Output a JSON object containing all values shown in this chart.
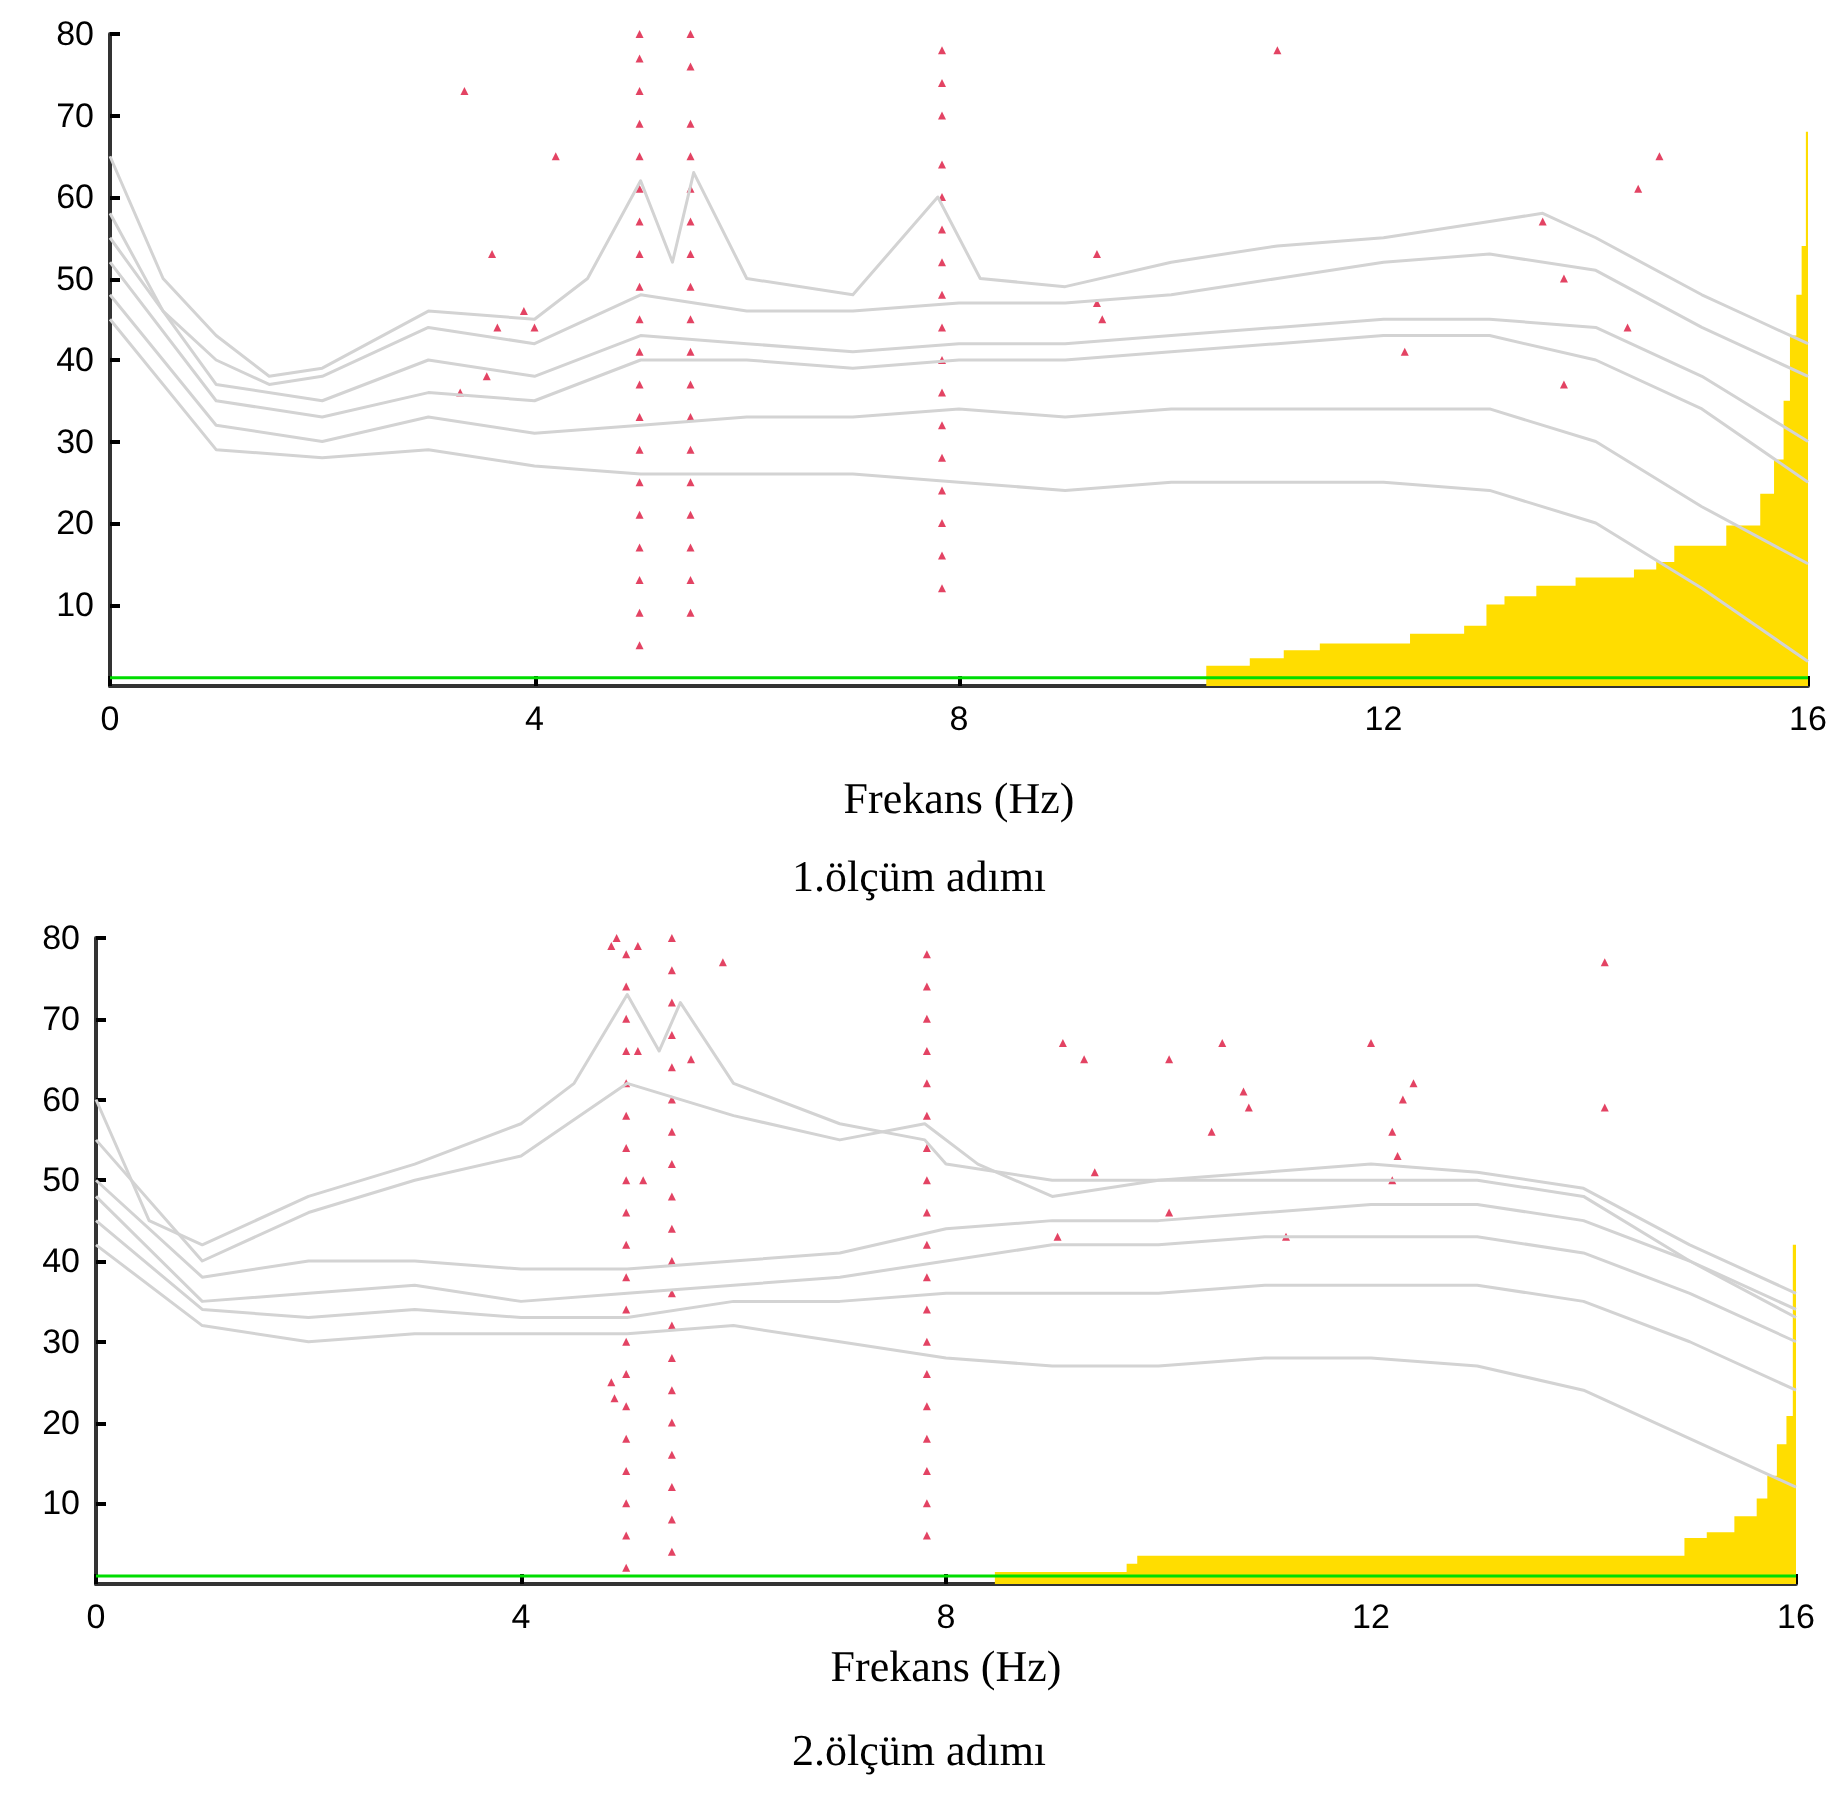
{
  "chart_data": [
    {
      "type": "line",
      "xlabel": "Frekans (Hz)",
      "title": "1.ölçüm adımı",
      "xlim": [
        0,
        16
      ],
      "xticks": [
        0,
        4,
        8,
        12,
        16
      ],
      "ylim": [
        0,
        80
      ],
      "yticks": [
        10,
        20,
        30,
        40,
        50,
        60,
        70,
        80
      ],
      "grid": false,
      "marker": "none",
      "line_style": "solid",
      "series": [
        {
          "type": "area",
          "color": "#ffdd00",
          "x": [
            10.33,
            10.33,
            10.74,
            10.74,
            11.06,
            11.06,
            11.4,
            11.4,
            12.25,
            12.25,
            12.76,
            12.76,
            12.97,
            12.97,
            13.14,
            13.14,
            13.44,
            13.44,
            13.81,
            13.81,
            14.36,
            14.36,
            14.57,
            14.57,
            14.74,
            14.74,
            15.23,
            15.23,
            15.55,
            15.55,
            15.68,
            15.68,
            15.77,
            15.77,
            15.83,
            15.83,
            15.89,
            15.89,
            15.94,
            15.94,
            15.98,
            15.98,
            16
          ],
          "values": [
            0,
            2.5,
            2.5,
            3.4,
            3.4,
            4.4,
            4.4,
            5.2,
            5.2,
            6.4,
            6.4,
            7.4,
            7.4,
            10,
            10,
            11,
            11,
            12.3,
            12.3,
            13.3,
            13.3,
            14.3,
            14.3,
            15.2,
            15.2,
            17.2,
            17.2,
            19.7,
            19.7,
            23.6,
            23.6,
            27.8,
            27.8,
            35,
            35,
            43,
            43,
            48,
            48,
            54,
            54,
            68,
            68
          ]
        },
        {
          "type": "line",
          "color": "#d3d3d3",
          "x": [
            0,
            0.5,
            1,
            1.5,
            2,
            3,
            4,
            4.5,
            5,
            5.3,
            5.5,
            6,
            7,
            7.8,
            8.2,
            9,
            10,
            11,
            12,
            13,
            13.5,
            14,
            15,
            15.5,
            16
          ],
          "values": [
            65,
            50,
            43,
            38,
            39,
            46,
            45,
            50,
            62,
            52,
            63,
            50,
            48,
            60,
            50,
            49,
            52,
            54,
            55,
            57,
            58,
            55,
            48,
            45,
            42
          ]
        },
        {
          "type": "line",
          "color": "#d3d3d3",
          "x": [
            0,
            0.5,
            1,
            1.5,
            2,
            3,
            4,
            5,
            6,
            7,
            8,
            9,
            10,
            11,
            12,
            13,
            14,
            15,
            16
          ],
          "values": [
            58,
            46,
            40,
            37,
            38,
            44,
            42,
            48,
            46,
            46,
            47,
            47,
            48,
            50,
            52,
            53,
            51,
            44,
            38
          ]
        },
        {
          "type": "line",
          "color": "#d3d3d3",
          "x": [
            0,
            1,
            2,
            3,
            4,
            5,
            6,
            7,
            8,
            9,
            10,
            11,
            12,
            13,
            14,
            15,
            16
          ],
          "values": [
            55,
            37,
            35,
            40,
            38,
            43,
            42,
            41,
            42,
            42,
            43,
            44,
            45,
            45,
            44,
            38,
            30
          ]
        },
        {
          "type": "line",
          "color": "#d3d3d3",
          "x": [
            0,
            1,
            2,
            3,
            4,
            5,
            6,
            7,
            8,
            9,
            10,
            11,
            12,
            13,
            14,
            15,
            16
          ],
          "values": [
            52,
            35,
            33,
            36,
            35,
            40,
            40,
            39,
            40,
            40,
            41,
            42,
            43,
            43,
            40,
            34,
            25
          ]
        },
        {
          "type": "line",
          "color": "#d3d3d3",
          "x": [
            0,
            1,
            2,
            3,
            4,
            5,
            6,
            7,
            8,
            9,
            10,
            11,
            12,
            13,
            14,
            15,
            16
          ],
          "values": [
            48,
            32,
            30,
            33,
            31,
            32,
            33,
            33,
            34,
            33,
            34,
            34,
            34,
            34,
            30,
            22,
            15
          ]
        },
        {
          "type": "line",
          "color": "#d3d3d3",
          "x": [
            0,
            1,
            2,
            3,
            4,
            5,
            6,
            7,
            8,
            9,
            10,
            11,
            12,
            13,
            14,
            15,
            16
          ],
          "values": [
            45,
            29,
            28,
            29,
            27,
            26,
            26,
            26,
            25,
            24,
            25,
            25,
            25,
            24,
            20,
            12,
            3
          ]
        },
        {
          "type": "line",
          "color": "#00dd00",
          "x": [
            0,
            16
          ],
          "values": [
            1,
            1
          ]
        },
        {
          "type": "scatter",
          "color": "#dc143c",
          "marker": "triangle",
          "x": [
            4.99,
            4.99,
            4.99,
            4.99,
            4.99,
            4.99,
            4.99,
            4.99,
            4.99,
            4.99,
            4.99,
            4.99,
            4.99,
            4.99,
            4.99,
            4.99,
            4.99,
            4.99,
            4.99,
            4.99,
            5.47,
            5.47,
            5.47,
            5.47,
            5.47,
            5.47,
            5.47,
            5.47,
            5.47,
            5.47,
            5.47,
            5.47,
            5.47,
            5.47,
            5.47,
            5.47,
            5.47,
            5.47,
            7.84,
            7.84,
            7.84,
            7.84,
            7.84,
            7.84,
            7.84,
            7.84,
            7.84,
            7.84,
            7.84,
            7.84,
            7.84,
            7.84,
            7.84,
            7.84,
            7.84,
            3.34,
            3.6,
            3.55,
            3.65,
            3.9,
            4.0,
            4.2,
            3.3,
            11,
            9.3,
            9.3,
            9.35,
            12.2,
            13.5,
            13.7,
            13.7,
            14.4,
            14.6,
            14.3
          ],
          "values": [
            5,
            9,
            13,
            17,
            21,
            25,
            29,
            33,
            37,
            41,
            45,
            49,
            53,
            57,
            61,
            65,
            69,
            73,
            77,
            80,
            9,
            13,
            17,
            21,
            25,
            29,
            33,
            37,
            41,
            45,
            49,
            53,
            57,
            61,
            65,
            69,
            76,
            80,
            12,
            16,
            20,
            24,
            28,
            32,
            36,
            40,
            44,
            48,
            52,
            56,
            60,
            64,
            70,
            74,
            78,
            73,
            53,
            38,
            44,
            46,
            44,
            65,
            36,
            78,
            53,
            47,
            45,
            41,
            57,
            50,
            37,
            61,
            65,
            44
          ]
        }
      ]
    },
    {
      "type": "line",
      "xlabel": "Frekans (Hz)",
      "title": "2.ölçüm adımı",
      "xlim": [
        0,
        16
      ],
      "xticks": [
        0,
        4,
        8,
        12,
        16
      ],
      "ylim": [
        0,
        80
      ],
      "yticks": [
        10,
        20,
        30,
        40,
        50,
        60,
        70,
        80
      ],
      "grid": false,
      "marker": "none",
      "line_style": "solid",
      "series": [
        {
          "type": "area",
          "color": "#ffdd00",
          "x": [
            8.46,
            8.46,
            9.7,
            9.7,
            9.8,
            9.8,
            14.95,
            14.95,
            15.16,
            15.16,
            15.42,
            15.42,
            15.63,
            15.63,
            15.73,
            15.73,
            15.82,
            15.82,
            15.91,
            15.91,
            15.97,
            15.97,
            16
          ],
          "values": [
            0,
            1.5,
            1.5,
            2.5,
            2.5,
            3.5,
            3.5,
            5.7,
            5.7,
            6.4,
            6.4,
            8.4,
            8.4,
            10.6,
            10.6,
            13.4,
            13.4,
            17.3,
            17.3,
            20.8,
            20.8,
            42,
            42
          ]
        },
        {
          "type": "line",
          "color": "#d3d3d3",
          "x": [
            0,
            0.5,
            1,
            2,
            3,
            4,
            4.5,
            5,
            5.3,
            5.5,
            6,
            7,
            7.8,
            8,
            9,
            10,
            11,
            12,
            13,
            14,
            15,
            16
          ],
          "values": [
            60,
            45,
            42,
            48,
            52,
            57,
            62,
            73,
            66,
            72,
            62,
            57,
            55,
            52,
            50,
            50,
            51,
            52,
            51,
            49,
            42,
            36
          ]
        },
        {
          "type": "line",
          "color": "#d3d3d3",
          "x": [
            0,
            1,
            2,
            3,
            4,
            5,
            6,
            7,
            7.8,
            8.3,
            9,
            10,
            11,
            12,
            13,
            14,
            15,
            16
          ],
          "values": [
            55,
            40,
            46,
            50,
            53,
            62,
            58,
            55,
            57,
            52,
            48,
            50,
            50,
            50,
            50,
            48,
            40,
            34
          ]
        },
        {
          "type": "line",
          "color": "#d3d3d3",
          "x": [
            0,
            1,
            2,
            3,
            4,
            5,
            6,
            7,
            8,
            9,
            10,
            11,
            12,
            13,
            14,
            15,
            16
          ],
          "values": [
            50,
            38,
            40,
            40,
            39,
            39,
            40,
            41,
            44,
            45,
            45,
            46,
            47,
            47,
            45,
            40,
            33
          ]
        },
        {
          "type": "line",
          "color": "#d3d3d3",
          "x": [
            0,
            1,
            2,
            3,
            4,
            5,
            6,
            7,
            8,
            9,
            10,
            11,
            12,
            13,
            14,
            15,
            16
          ],
          "values": [
            48,
            35,
            36,
            37,
            35,
            36,
            37,
            38,
            40,
            42,
            42,
            43,
            43,
            43,
            41,
            36,
            30
          ]
        },
        {
          "type": "line",
          "color": "#d3d3d3",
          "x": [
            0,
            1,
            2,
            3,
            4,
            5,
            6,
            7,
            8,
            9,
            10,
            11,
            12,
            13,
            14,
            15,
            16
          ],
          "values": [
            45,
            34,
            33,
            34,
            33,
            33,
            35,
            35,
            36,
            36,
            36,
            37,
            37,
            37,
            35,
            30,
            24
          ]
        },
        {
          "type": "line",
          "color": "#d3d3d3",
          "x": [
            0,
            1,
            2,
            3,
            4,
            5,
            6,
            7,
            8,
            9,
            10,
            11,
            12,
            13,
            14,
            15,
            16
          ],
          "values": [
            42,
            32,
            30,
            31,
            31,
            31,
            32,
            30,
            28,
            27,
            27,
            28,
            28,
            27,
            24,
            18,
            12
          ]
        },
        {
          "type": "line",
          "color": "#00dd00",
          "x": [
            0,
            16
          ],
          "values": [
            1,
            1
          ]
        },
        {
          "type": "scatter",
          "color": "#dc143c",
          "marker": "triangle",
          "x": [
            4.99,
            4.99,
            4.99,
            4.99,
            4.99,
            4.99,
            4.99,
            4.99,
            4.99,
            4.99,
            4.99,
            4.99,
            4.99,
            4.99,
            4.99,
            4.99,
            4.99,
            4.99,
            4.99,
            4.99,
            4.9,
            4.85,
            5.42,
            5.42,
            5.42,
            5.42,
            5.42,
            5.42,
            5.42,
            5.42,
            5.42,
            5.42,
            5.42,
            5.42,
            5.42,
            5.42,
            5.42,
            5.42,
            5.42,
            5.42,
            5.42,
            5.42,
            7.82,
            7.82,
            7.82,
            7.82,
            7.82,
            7.82,
            7.82,
            7.82,
            7.82,
            7.82,
            7.82,
            7.82,
            7.82,
            7.82,
            7.82,
            7.82,
            7.82,
            7.82,
            7.82,
            4.85,
            4.88,
            5.1,
            5.15,
            5.9,
            5.6,
            5.1,
            9.1,
            9.3,
            10.1,
            10.6,
            10.8,
            10.85,
            10.5,
            9.4,
            10.1,
            9.05,
            11.2,
            12.0,
            12.4,
            12.3,
            12.2,
            12.25,
            12.2,
            14.2,
            14.2
          ],
          "values": [
            2,
            6,
            10,
            14,
            18,
            22,
            26,
            30,
            34,
            38,
            42,
            46,
            50,
            54,
            58,
            62,
            66,
            70,
            74,
            78,
            80,
            79,
            4,
            8,
            12,
            16,
            20,
            24,
            28,
            32,
            36,
            40,
            44,
            48,
            52,
            56,
            60,
            64,
            68,
            72,
            76,
            80,
            6,
            10,
            14,
            18,
            22,
            26,
            30,
            34,
            38,
            42,
            46,
            50,
            54,
            58,
            62,
            66,
            70,
            74,
            78,
            25,
            23,
            66,
            50,
            77,
            65,
            79,
            67,
            65,
            65,
            67,
            61,
            59,
            56,
            51,
            46,
            43,
            43,
            67,
            62,
            60,
            56,
            53,
            50,
            77,
            59
          ]
        }
      ]
    }
  ]
}
